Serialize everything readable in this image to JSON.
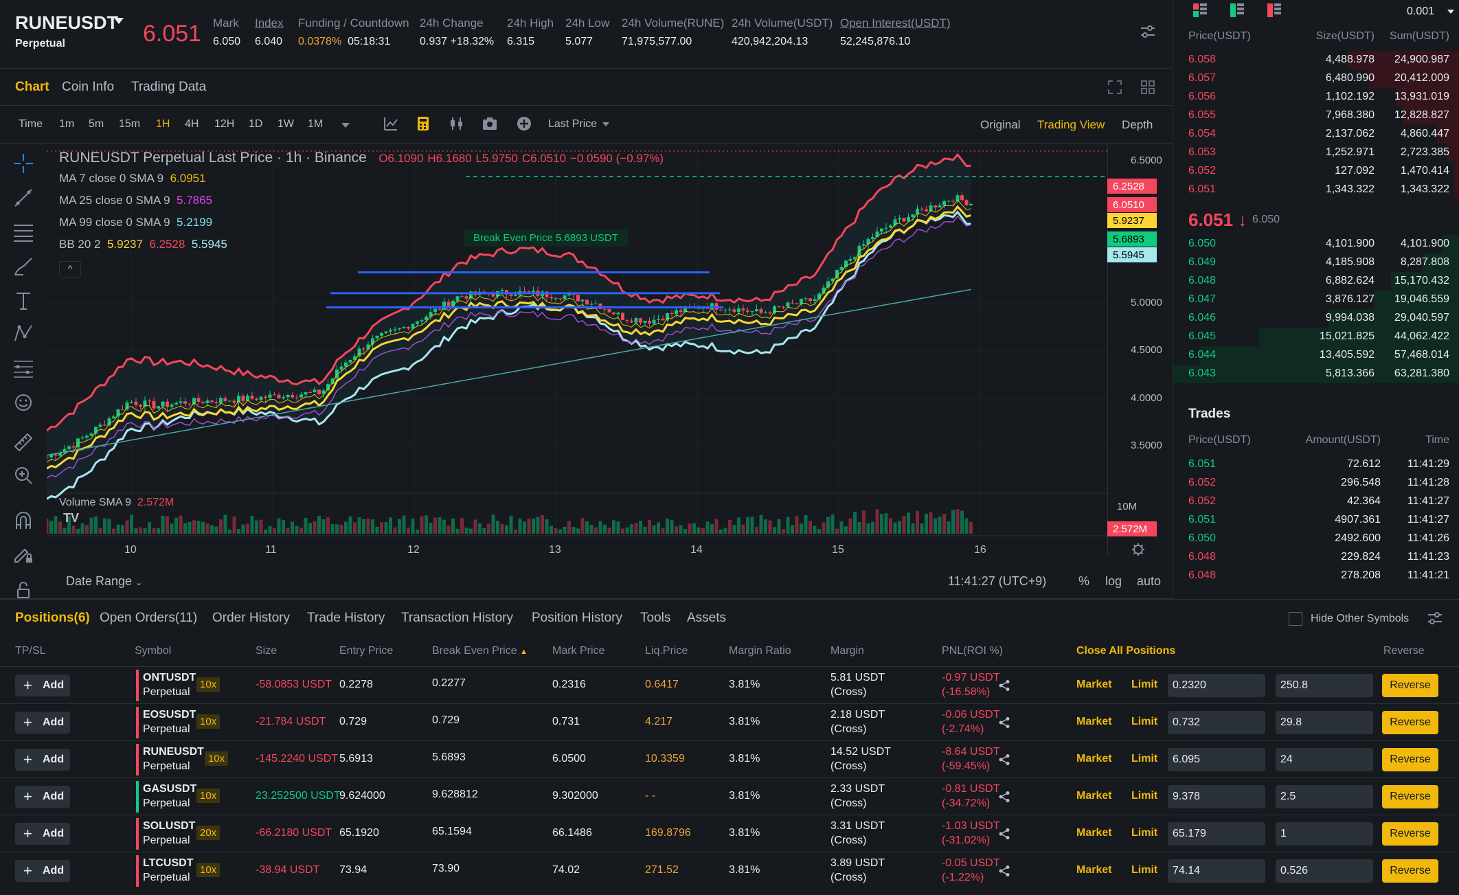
{
  "header": {
    "symbol": "RUNEUSDT",
    "symbol_type": "Perpetual",
    "last_price": "6.051",
    "stats": [
      {
        "label": "Mark",
        "value": "6.050",
        "color": "#eaecef"
      },
      {
        "label": "Index",
        "value": "6.040",
        "color": "#eaecef"
      },
      {
        "label": "Funding / Countdown",
        "value": "0.0378%",
        "value2": "05:18:31",
        "color": "#f0a33a"
      },
      {
        "label": "24h Change",
        "value": "0.937 +18.32%",
        "color": "#0ecb81"
      },
      {
        "label": "24h High",
        "value": "6.315",
        "color": "#eaecef"
      },
      {
        "label": "24h Low",
        "value": "5.077",
        "color": "#eaecef"
      },
      {
        "label": "24h Volume(RUNE)",
        "value": "71,975,577.00",
        "color": "#eaecef"
      },
      {
        "label": "24h Volume(USDT)",
        "value": "420,942,204.13",
        "color": "#eaecef"
      },
      {
        "label": "Open Interest(USDT)",
        "value": "52,245,876.10",
        "color": "#eaecef"
      }
    ]
  },
  "chart_tabs": [
    "Chart",
    "Coin Info",
    "Trading Data"
  ],
  "toolbar": {
    "timeframes": [
      "Time",
      "1m",
      "5m",
      "15m",
      "1H",
      "4H",
      "12H",
      "1D",
      "1W",
      "1M"
    ],
    "active_timeframe": "1H",
    "price_type": "Last Price",
    "views": [
      "Original",
      "Trading View",
      "Depth"
    ],
    "active_view": "Trading View"
  },
  "chart": {
    "title": "RUNEUSDT Perpetual Last Price · 1h · Binance",
    "ohlc": {
      "o": "O6.1090",
      "h": "H6.1680",
      "l": "L5.9750",
      "c": "C6.0510",
      "chg": "−0.0590 (−0.97%)"
    },
    "ma7": {
      "label": "MA 7 close 0 SMA 9",
      "value": "6.0951",
      "color": "#f0b90b"
    },
    "ma25": {
      "label": "MA 25 close 0 SMA 9",
      "value": "5.7865",
      "color": "#e040fb"
    },
    "ma99": {
      "label": "MA 99 close 0 SMA 9",
      "value": "5.2199",
      "color": "#7ee0ef"
    },
    "bb": {
      "label": "BB 20 2",
      "v1": "5.9237",
      "v2": "6.2528",
      "v3": "5.5945"
    },
    "break_even": "Break Even Price 5.6893 USDT",
    "volume_label": "Volume SMA 9",
    "volume_value": "2.572M",
    "price_ticks": [
      "6.5000",
      "5.0000",
      "4.5000",
      "4.0000",
      "3.5000"
    ],
    "price_tags": [
      {
        "text": "6.2528",
        "bg": "#f6465d",
        "fg": "#ffffff"
      },
      {
        "text": "6.0510",
        "bg": "#f6465d",
        "fg": "#ffffff"
      },
      {
        "text": "5.9237",
        "bg": "#fcd535",
        "fg": "#000000"
      },
      {
        "text": "5.6893",
        "bg": "#0ecb81",
        "fg": "#000000"
      },
      {
        "text": "5.5945",
        "bg": "#a6e7f0",
        "fg": "#000000"
      }
    ],
    "vol_ticks": [
      "10M"
    ],
    "vol_tag": "2.572M",
    "date_ticks": [
      "10",
      "11",
      "12",
      "13",
      "14",
      "15",
      "16"
    ]
  },
  "date_bar": {
    "date_range": "Date Range",
    "time": "11:41:27 (UTC+9)",
    "pct": "%",
    "log": "log",
    "auto": "auto"
  },
  "orderbook": {
    "precision": "0.001",
    "headers": [
      "Price(USDT)",
      "Size(USDT)",
      "Sum(USDT)"
    ],
    "asks": [
      {
        "price": "6.058",
        "size": "4,488.978",
        "sum": "24,900.987",
        "depth": 0.39
      },
      {
        "price": "6.057",
        "size": "6,480.990",
        "sum": "20,412.009",
        "depth": 0.32
      },
      {
        "price": "6.056",
        "size": "1,102.192",
        "sum": "13,931.019",
        "depth": 0.22
      },
      {
        "price": "6.055",
        "size": "7,968.380",
        "sum": "12,828.827",
        "depth": 0.2
      },
      {
        "price": "6.054",
        "size": "2,137.062",
        "sum": "4,860.447",
        "depth": 0.08
      },
      {
        "price": "6.053",
        "size": "1,252.971",
        "sum": "2,723.385",
        "depth": 0.04
      },
      {
        "price": "6.052",
        "size": "127.092",
        "sum": "1,470.414",
        "depth": 0.02
      },
      {
        "price": "6.051",
        "size": "1,343.322",
        "sum": "1,343.322",
        "depth": 0.02
      }
    ],
    "mid_price": "6.051",
    "mid_mark": "6.050",
    "bids": [
      {
        "price": "6.050",
        "size": "4,101.900",
        "sum": "4,101.900",
        "depth": 0.06
      },
      {
        "price": "6.049",
        "size": "4,185.908",
        "sum": "8,287.808",
        "depth": 0.13
      },
      {
        "price": "6.048",
        "size": "6,882.624",
        "sum": "15,170.432",
        "depth": 0.24
      },
      {
        "price": "6.047",
        "size": "3,876.127",
        "sum": "19,046.559",
        "depth": 0.3
      },
      {
        "price": "6.046",
        "size": "9,994.038",
        "sum": "29,040.597",
        "depth": 0.46
      },
      {
        "price": "6.045",
        "size": "15,021.825",
        "sum": "44,062.422",
        "depth": 0.7
      },
      {
        "price": "6.044",
        "size": "13,405.592",
        "sum": "57,468.014",
        "depth": 0.91
      },
      {
        "price": "6.043",
        "size": "5,813.366",
        "sum": "63,281.380",
        "depth": 1.0
      }
    ]
  },
  "trades": {
    "title": "Trades",
    "headers": [
      "Price(USDT)",
      "Amount(USDT)",
      "Time"
    ],
    "rows": [
      {
        "price": "6.051",
        "amount": "72.612",
        "time": "11:41:29",
        "side": "buy"
      },
      {
        "price": "6.052",
        "amount": "296.548",
        "time": "11:41:28",
        "side": "sell"
      },
      {
        "price": "6.052",
        "amount": "42.364",
        "time": "11:41:27",
        "side": "sell"
      },
      {
        "price": "6.051",
        "amount": "4907.361",
        "time": "11:41:27",
        "side": "buy"
      },
      {
        "price": "6.050",
        "amount": "2492.600",
        "time": "11:41:26",
        "side": "buy"
      },
      {
        "price": "6.048",
        "amount": "229.824",
        "time": "11:41:23",
        "side": "sell"
      },
      {
        "price": "6.048",
        "amount": "278.208",
        "time": "11:41:21",
        "side": "sell"
      }
    ]
  },
  "positions": {
    "tabs": [
      "Positions(6)",
      "Open Orders(11)",
      "Order History",
      "Trade History",
      "Transaction History",
      "Position History",
      "Tools",
      "Assets"
    ],
    "hide_other": "Hide Other Symbols",
    "headers": [
      "TP/SL",
      "Symbol",
      "Size",
      "Entry Price",
      "Break Even Price",
      "Mark Price",
      "Liq.Price",
      "Margin Ratio",
      "Margin",
      "PNL(ROI %)",
      "Close All Positions",
      "Reverse"
    ],
    "add_label": "Add",
    "market_label": "Market",
    "limit_label": "Limit",
    "reverse_label": "Reverse",
    "rows": [
      {
        "symbol": "ONTUSDT",
        "type": "Perpetual",
        "lev": "10x",
        "size": "-58.0853 USDT",
        "side": "short",
        "entry": "0.2278",
        "be": "0.2277",
        "mark": "0.2316",
        "liq": "0.6417",
        "ratio": "3.81%",
        "margin": "5.81 USDT",
        "mode": "(Cross)",
        "pnl": "-0.97 USDT",
        "roi": "(-16.58%)",
        "limit_price": "0.2320",
        "qty": "250.8"
      },
      {
        "symbol": "EOSUSDT",
        "type": "Perpetual",
        "lev": "10x",
        "size": "-21.784 USDT",
        "side": "short",
        "entry": "0.729",
        "be": "0.729",
        "mark": "0.731",
        "liq": "4.217",
        "ratio": "3.81%",
        "margin": "2.18 USDT",
        "mode": "(Cross)",
        "pnl": "-0.06 USDT",
        "roi": "(-2.74%)",
        "limit_price": "0.732",
        "qty": "29.8"
      },
      {
        "symbol": "RUNEUSDT",
        "type": "Perpetual",
        "lev": "10x",
        "size": "-145.2240 USDT",
        "side": "short",
        "entry": "5.6913",
        "be": "5.6893",
        "mark": "6.0500",
        "liq": "10.3359",
        "ratio": "3.81%",
        "margin": "14.52 USDT",
        "mode": "(Cross)",
        "pnl": "-8.64 USDT",
        "roi": "(-59.45%)",
        "limit_price": "6.095",
        "qty": "24"
      },
      {
        "symbol": "GASUSDT",
        "type": "Perpetual",
        "lev": "10x",
        "size": "23.252500 USDT",
        "side": "long",
        "entry": "9.624000",
        "be": "9.628812",
        "mark": "9.302000",
        "liq": "- -",
        "ratio": "3.81%",
        "margin": "2.33 USDT",
        "mode": "(Cross)",
        "pnl": "-0.81 USDT",
        "roi": "(-34.72%)",
        "limit_price": "9.378",
        "qty": "2.5"
      },
      {
        "symbol": "SOLUSDT",
        "type": "Perpetual",
        "lev": "20x",
        "size": "-66.2180 USDT",
        "side": "short",
        "entry": "65.1920",
        "be": "65.1594",
        "mark": "66.1486",
        "liq": "169.8796",
        "ratio": "3.81%",
        "margin": "3.31 USDT",
        "mode": "(Cross)",
        "pnl": "-1.03 USDT",
        "roi": "(-31.02%)",
        "limit_price": "65.179",
        "qty": "1"
      },
      {
        "symbol": "LTCUSDT",
        "type": "Perpetual",
        "lev": "10x",
        "size": "-38.94 USDT",
        "side": "short",
        "entry": "73.94",
        "be": "73.90",
        "mark": "74.02",
        "liq": "271.52",
        "ratio": "3.81%",
        "margin": "3.89 USDT",
        "mode": "(Cross)",
        "pnl": "-0.05 USDT",
        "roi": "(-1.22%)",
        "limit_price": "74.14",
        "qty": "0.526"
      }
    ]
  }
}
